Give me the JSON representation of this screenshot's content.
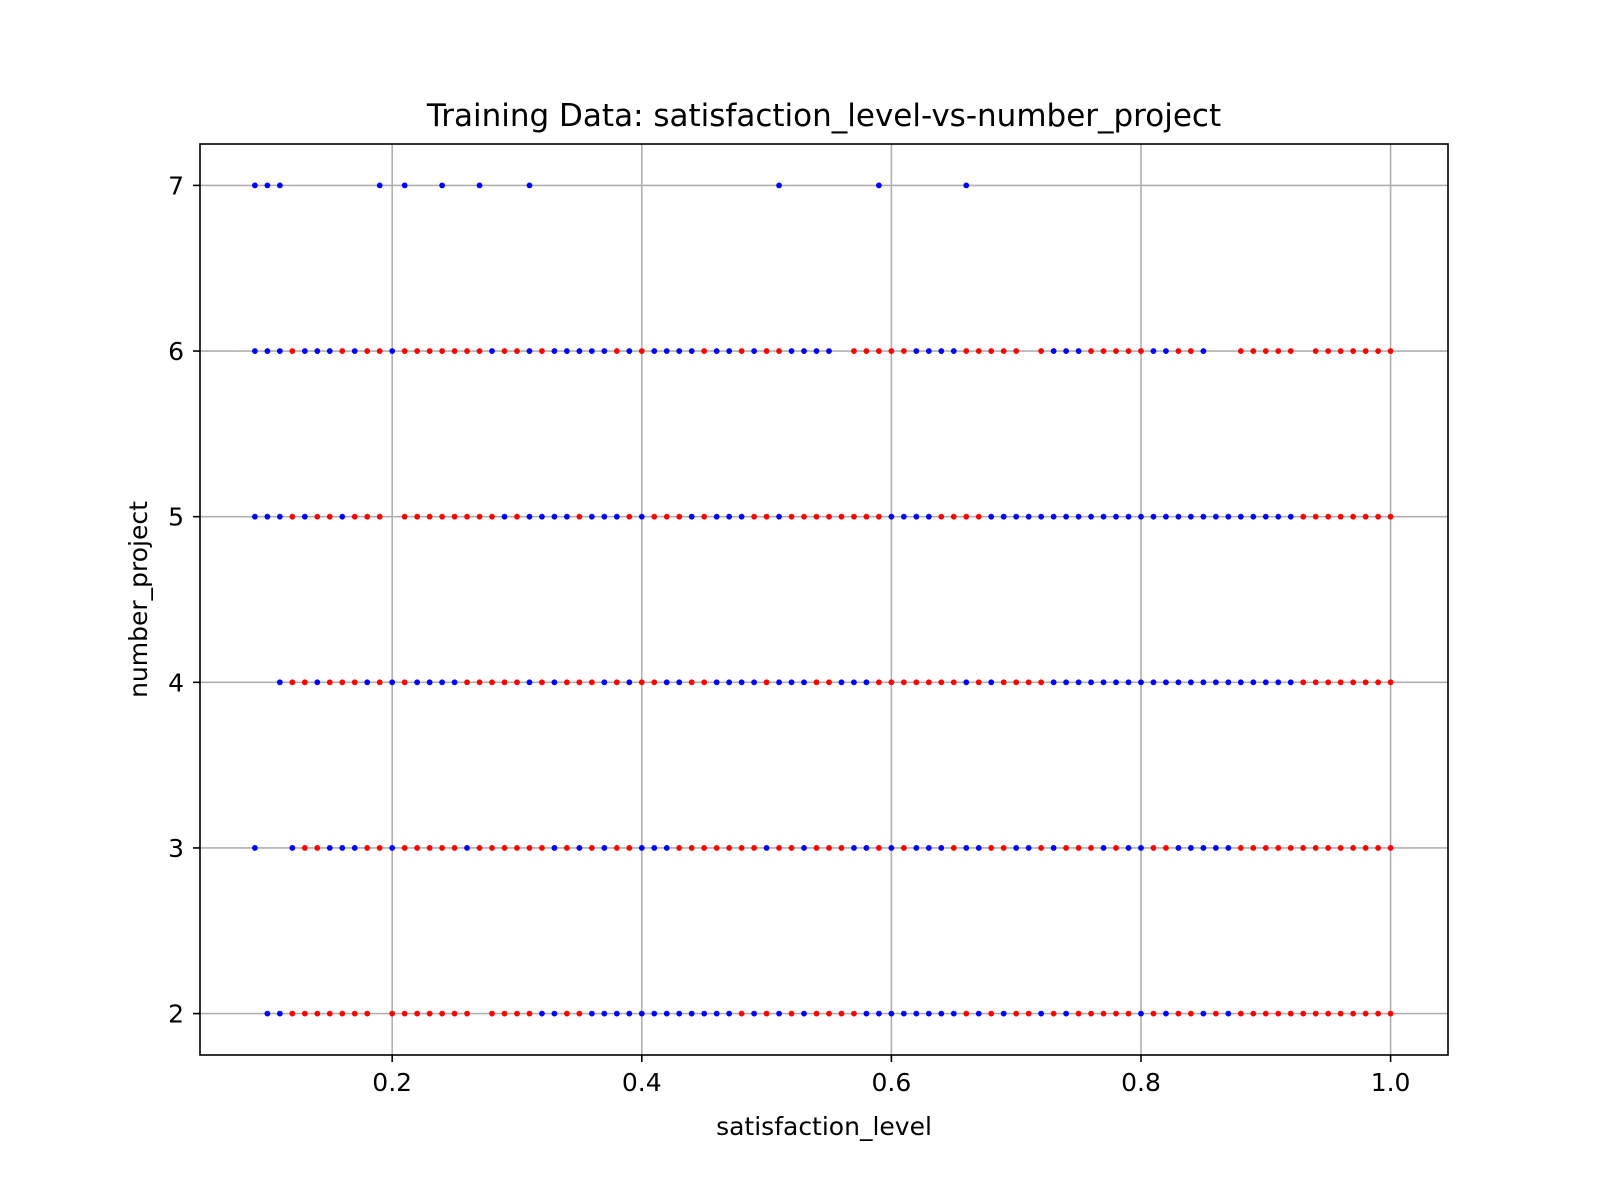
{
  "chart_data": {
    "type": "scatter",
    "title": "Training Data: satisfaction_level-vs-number_project",
    "xlabel": "satisfaction_level",
    "ylabel": "number_project",
    "xlim": [
      0.046,
      1.046
    ],
    "ylim": [
      1.75,
      7.25
    ],
    "xticks": [
      0.2,
      0.4,
      0.6,
      0.8,
      1.0
    ],
    "xtick_labels": [
      "0.2",
      "0.4",
      "0.6",
      "0.8",
      "1.0"
    ],
    "yticks": [
      2,
      3,
      4,
      5,
      6,
      7
    ],
    "ytick_labels": [
      "2",
      "3",
      "4",
      "5",
      "6",
      "7"
    ],
    "grid": true,
    "legend": "none",
    "colors": {
      "class_a": "#0000ff",
      "class_b": "#ff0000",
      "grid": "#b0b0b0",
      "axes": "#000000"
    },
    "series": [
      {
        "color": "#0000ff",
        "points": [
          {
            "y": 7,
            "x": [
              0.09,
              0.1,
              0.11,
              0.19,
              0.21,
              0.24,
              0.27,
              0.31,
              0.51,
              0.59,
              0.66
            ]
          },
          {
            "y": 6,
            "x": [
              0.09,
              0.1,
              0.11,
              0.13,
              0.14,
              0.15,
              0.17,
              0.2,
              0.28,
              0.31,
              0.33,
              0.34,
              0.35,
              0.36,
              0.37,
              0.39,
              0.41,
              0.42,
              0.43,
              0.44,
              0.46,
              0.47,
              0.49,
              0.52,
              0.53,
              0.54,
              0.55,
              0.62,
              0.63,
              0.64,
              0.65,
              0.73,
              0.74,
              0.75,
              0.81,
              0.82,
              0.85
            ]
          },
          {
            "y": 5,
            "x": [
              0.09,
              0.1,
              0.11,
              0.13,
              0.16,
              0.29,
              0.31,
              0.32,
              0.33,
              0.34,
              0.36,
              0.37,
              0.38,
              0.4,
              0.44,
              0.46,
              0.47,
              0.48,
              0.51,
              0.6,
              0.61,
              0.62,
              0.63,
              0.68,
              0.69,
              0.7,
              0.71,
              0.72,
              0.73,
              0.74,
              0.75,
              0.76,
              0.77,
              0.78,
              0.79,
              0.8,
              0.81,
              0.82,
              0.83,
              0.84,
              0.85,
              0.86,
              0.87,
              0.88,
              0.89,
              0.9,
              0.91,
              0.92
            ]
          },
          {
            "y": 4,
            "x": [
              0.11,
              0.14,
              0.18,
              0.2,
              0.22,
              0.23,
              0.24,
              0.25,
              0.31,
              0.33,
              0.37,
              0.39,
              0.42,
              0.43,
              0.46,
              0.47,
              0.48,
              0.49,
              0.51,
              0.52,
              0.53,
              0.56,
              0.57,
              0.58,
              0.66,
              0.68,
              0.73,
              0.74,
              0.75,
              0.76,
              0.77,
              0.78,
              0.79,
              0.8,
              0.81,
              0.82,
              0.83,
              0.84,
              0.85,
              0.86,
              0.87,
              0.88,
              0.89,
              0.9,
              0.91,
              0.92
            ]
          },
          {
            "y": 3,
            "x": [
              0.09,
              0.12,
              0.15,
              0.16,
              0.17,
              0.2,
              0.26,
              0.33,
              0.35,
              0.37,
              0.4,
              0.41,
              0.42,
              0.5,
              0.53,
              0.57,
              0.58,
              0.6,
              0.62,
              0.63,
              0.64,
              0.66,
              0.67,
              0.7,
              0.71,
              0.73,
              0.77,
              0.79,
              0.8,
              0.83,
              0.84,
              0.85,
              0.86,
              0.87
            ]
          },
          {
            "y": 2,
            "x": [
              0.1,
              0.11,
              0.32,
              0.33,
              0.36,
              0.37,
              0.38,
              0.39,
              0.4,
              0.41,
              0.42,
              0.43,
              0.44,
              0.45,
              0.46,
              0.47,
              0.49,
              0.51,
              0.53,
              0.58,
              0.59,
              0.6,
              0.61,
              0.62,
              0.63,
              0.64,
              0.65,
              0.67,
              0.69,
              0.72,
              0.74,
              0.8,
              0.82,
              0.85,
              0.87
            ]
          }
        ]
      },
      {
        "color": "#ff0000",
        "points": [
          {
            "y": 6,
            "x": [
              0.12,
              0.16,
              0.18,
              0.19,
              0.21,
              0.22,
              0.23,
              0.24,
              0.25,
              0.26,
              0.27,
              0.29,
              0.3,
              0.32,
              0.38,
              0.4,
              0.45,
              0.48,
              0.5,
              0.51,
              0.57,
              0.58,
              0.59,
              0.6,
              0.61,
              0.66,
              0.67,
              0.68,
              0.69,
              0.7,
              0.72,
              0.76,
              0.77,
              0.78,
              0.79,
              0.8,
              0.83,
              0.84,
              0.88,
              0.89,
              0.9,
              0.91,
              0.92,
              0.94,
              0.95,
              0.96,
              0.97,
              0.98,
              0.99,
              1.0
            ]
          },
          {
            "y": 5,
            "x": [
              0.12,
              0.14,
              0.15,
              0.17,
              0.18,
              0.19,
              0.21,
              0.22,
              0.23,
              0.24,
              0.25,
              0.26,
              0.27,
              0.28,
              0.3,
              0.35,
              0.39,
              0.41,
              0.42,
              0.43,
              0.45,
              0.49,
              0.5,
              0.52,
              0.53,
              0.54,
              0.55,
              0.56,
              0.57,
              0.58,
              0.59,
              0.64,
              0.65,
              0.66,
              0.67,
              0.93,
              0.94,
              0.95,
              0.96,
              0.97,
              0.98,
              0.99,
              1.0
            ]
          },
          {
            "y": 4,
            "x": [
              0.12,
              0.13,
              0.15,
              0.16,
              0.17,
              0.19,
              0.21,
              0.26,
              0.27,
              0.28,
              0.29,
              0.3,
              0.32,
              0.34,
              0.35,
              0.36,
              0.38,
              0.4,
              0.41,
              0.44,
              0.45,
              0.5,
              0.54,
              0.55,
              0.59,
              0.6,
              0.61,
              0.62,
              0.63,
              0.64,
              0.65,
              0.67,
              0.69,
              0.7,
              0.71,
              0.72,
              0.93,
              0.94,
              0.95,
              0.96,
              0.97,
              0.98,
              0.99,
              1.0
            ]
          },
          {
            "y": 3,
            "x": [
              0.13,
              0.14,
              0.18,
              0.19,
              0.21,
              0.22,
              0.23,
              0.24,
              0.25,
              0.27,
              0.28,
              0.29,
              0.3,
              0.31,
              0.32,
              0.34,
              0.36,
              0.38,
              0.39,
              0.43,
              0.44,
              0.45,
              0.46,
              0.47,
              0.48,
              0.49,
              0.51,
              0.52,
              0.54,
              0.55,
              0.56,
              0.59,
              0.61,
              0.65,
              0.68,
              0.69,
              0.72,
              0.74,
              0.75,
              0.76,
              0.78,
              0.81,
              0.82,
              0.88,
              0.89,
              0.9,
              0.91,
              0.92,
              0.93,
              0.94,
              0.95,
              0.96,
              0.97,
              0.98,
              0.99,
              1.0
            ]
          },
          {
            "y": 2,
            "x": [
              0.12,
              0.13,
              0.14,
              0.15,
              0.16,
              0.17,
              0.18,
              0.2,
              0.21,
              0.22,
              0.23,
              0.24,
              0.25,
              0.26,
              0.28,
              0.29,
              0.3,
              0.31,
              0.34,
              0.35,
              0.48,
              0.5,
              0.52,
              0.54,
              0.55,
              0.56,
              0.57,
              0.66,
              0.68,
              0.7,
              0.71,
              0.73,
              0.75,
              0.76,
              0.77,
              0.78,
              0.79,
              0.81,
              0.83,
              0.84,
              0.86,
              0.88,
              0.89,
              0.9,
              0.91,
              0.92,
              0.93,
              0.94,
              0.95,
              0.96,
              0.97,
              0.98,
              0.99,
              1.0
            ]
          }
        ]
      }
    ]
  }
}
